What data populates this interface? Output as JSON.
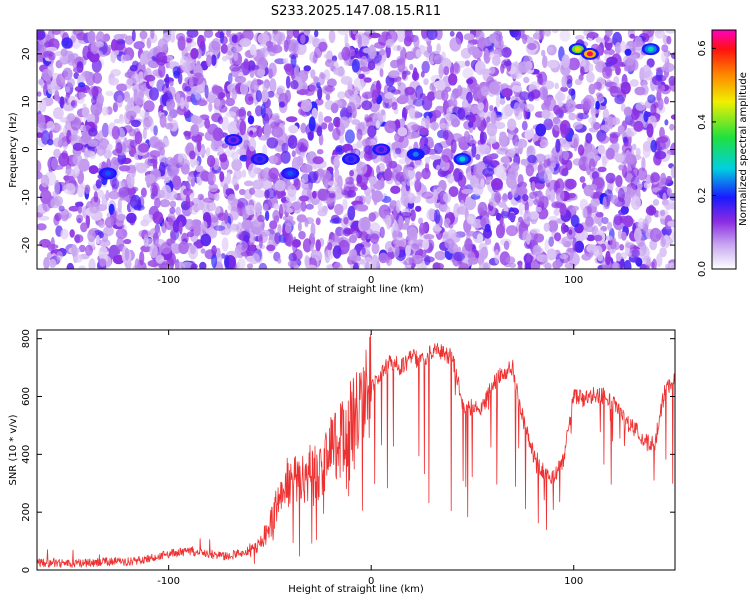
{
  "figure": {
    "title": "S233.2025.147.08.15.R11"
  },
  "chart_data": [
    {
      "type": "heatmap",
      "title": "S233.2025.147.08.15.R11",
      "xlabel": "Height of straight line (km)",
      "ylabel": "Frequency (Hz)",
      "xlim": [
        -165,
        150
      ],
      "ylim": [
        -25,
        25
      ],
      "xticks": [
        -100,
        0,
        100
      ],
      "yticks": [
        -20,
        -10,
        0,
        10,
        20
      ],
      "colorbar": {
        "label": "Normalized spectral amplitude",
        "range": [
          0.0,
          0.65
        ],
        "ticks": [
          0.0,
          0.2,
          0.4,
          0.6
        ]
      },
      "hotspots": [
        {
          "x": -130,
          "y": -5,
          "value": 0.22
        },
        {
          "x": -68,
          "y": 2,
          "value": 0.18
        },
        {
          "x": -55,
          "y": -2,
          "value": 0.2
        },
        {
          "x": -40,
          "y": -5,
          "value": 0.22
        },
        {
          "x": -10,
          "y": -2,
          "value": 0.2
        },
        {
          "x": 5,
          "y": 0,
          "value": 0.18
        },
        {
          "x": 22,
          "y": -1,
          "value": 0.24
        },
        {
          "x": 45,
          "y": -2,
          "value": 0.28
        },
        {
          "x": 102,
          "y": 21,
          "value": 0.48
        },
        {
          "x": 108,
          "y": 20,
          "value": 0.62
        },
        {
          "x": 138,
          "y": 21,
          "value": 0.3
        }
      ]
    },
    {
      "type": "line",
      "xlabel": "Height of straight line (km)",
      "ylabel": "SNR (10 * v/v)",
      "xlim": [
        -165,
        150
      ],
      "ylim": [
        0,
        830
      ],
      "xticks": [
        -100,
        0,
        100
      ],
      "yticks": [
        0,
        200,
        400,
        600,
        800
      ],
      "color": "#ee3030",
      "series": [
        {
          "x": [
            -165,
            -150,
            -140,
            -130,
            -120,
            -110,
            -100,
            -90,
            -80,
            -70,
            -60,
            -55,
            -50,
            -45,
            -40,
            -35,
            -30,
            -25,
            -20,
            -15,
            -10,
            -5,
            0,
            5,
            10,
            15,
            20,
            25,
            30,
            35,
            40,
            45,
            50,
            55,
            60,
            65,
            70,
            75,
            80,
            85,
            90,
            95,
            100,
            105,
            110,
            115,
            120,
            125,
            130,
            135,
            140,
            145,
            150
          ],
          "y": [
            25,
            22,
            24,
            30,
            28,
            40,
            55,
            65,
            55,
            45,
            70,
            90,
            150,
            260,
            320,
            300,
            340,
            330,
            420,
            460,
            520,
            560,
            640,
            680,
            720,
            700,
            740,
            720,
            760,
            750,
            740,
            580,
            560,
            560,
            640,
            680,
            700,
            520,
            400,
            340,
            320,
            380,
            600,
            590,
            610,
            600,
            570,
            520,
            490,
            440,
            440,
            620,
            660
          ]
        }
      ]
    }
  ]
}
